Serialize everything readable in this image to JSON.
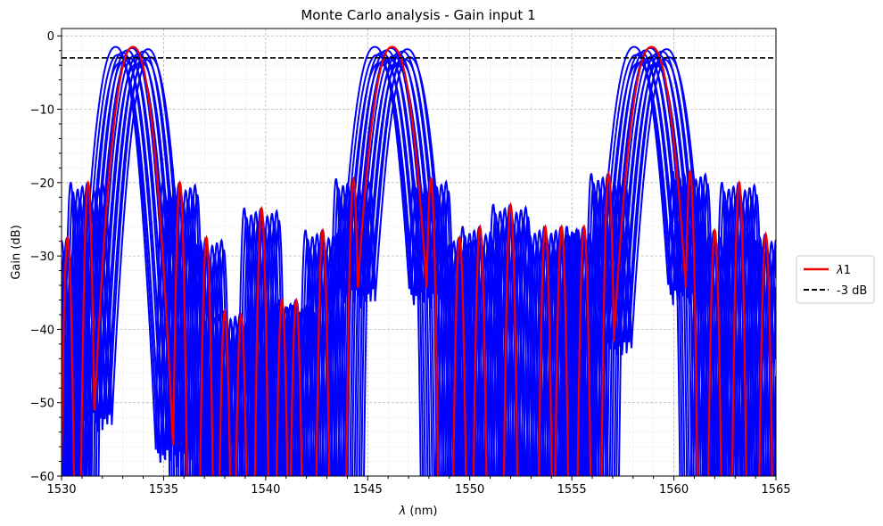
{
  "chart_data": {
    "type": "line",
    "title": "Monte Carlo analysis - Gain input 1",
    "xlabel_symbol": "λ",
    "xlabel_unit": " (nm)",
    "ylabel": "Gain (dB)",
    "xlim": [
      1530,
      1565
    ],
    "ylim": [
      -60,
      1
    ],
    "x_ticks": [
      1530,
      1535,
      1540,
      1545,
      1550,
      1555,
      1560,
      1565
    ],
    "y_ticks": [
      0,
      -10,
      -20,
      -30,
      -40,
      -50,
      -60
    ],
    "grid": true,
    "legend_position": "right",
    "legend": [
      {
        "label_symbol": "λ",
        "label_suffix": "1",
        "color": "#ee0000",
        "style": "solid"
      },
      {
        "label": "-3 dB",
        "color": "#000000",
        "style": "dashed"
      }
    ],
    "reference_line": {
      "name": "-3 dB",
      "y": -3,
      "color": "#000000"
    },
    "main_lobes": [
      {
        "center": 1533.5,
        "peak": -1.5,
        "halfwidth": 1.3
      },
      {
        "center": 1546.2,
        "peak": -1.5,
        "halfwidth": 1.4
      },
      {
        "center": 1558.9,
        "peak": -1.5,
        "halfwidth": 1.4
      }
    ],
    "side_lobes": [
      {
        "center": 1531.3,
        "peak": -20.0
      },
      {
        "center": 1530.3,
        "peak": -27.5
      },
      {
        "center": 1532.2,
        "peak": -26.0
      },
      {
        "center": 1535.8,
        "peak": -20.0
      },
      {
        "center": 1537.1,
        "peak": -27.5
      },
      {
        "center": 1538.0,
        "peak": -37.5
      },
      {
        "center": 1538.8,
        "peak": -38.0
      },
      {
        "center": 1539.8,
        "peak": -23.5
      },
      {
        "center": 1540.8,
        "peak": -36.0
      },
      {
        "center": 1541.5,
        "peak": -36.0
      },
      {
        "center": 1542.8,
        "peak": -26.5
      },
      {
        "center": 1544.3,
        "peak": -19.5
      },
      {
        "center": 1545.1,
        "peak": -26.5
      },
      {
        "center": 1547.4,
        "peak": -26.0
      },
      {
        "center": 1548.1,
        "peak": -19.5
      },
      {
        "center": 1549.5,
        "peak": -27.5
      },
      {
        "center": 1550.5,
        "peak": -26.0
      },
      {
        "center": 1552.0,
        "peak": -23.0
      },
      {
        "center": 1553.7,
        "peak": -26.0
      },
      {
        "center": 1554.5,
        "peak": -26.0
      },
      {
        "center": 1555.6,
        "peak": -26.0
      },
      {
        "center": 1556.8,
        "peak": -18.8
      },
      {
        "center": 1557.8,
        "peak": -27.0
      },
      {
        "center": 1560.0,
        "peak": -26.0
      },
      {
        "center": 1560.8,
        "peak": -18.5
      },
      {
        "center": 1562.0,
        "peak": -26.5
      },
      {
        "center": 1563.2,
        "peak": -20.0
      },
      {
        "center": 1564.5,
        "peak": -27.0
      }
    ],
    "monte_carlo": {
      "color": "#0000ff",
      "runs": 16,
      "max_shift_nm": 0.85,
      "peak_range": [
        -1.5,
        -4.0
      ]
    },
    "nominal_color": "#ee0000"
  }
}
